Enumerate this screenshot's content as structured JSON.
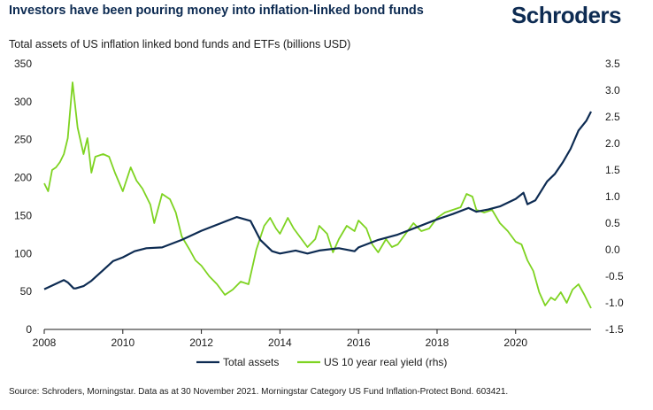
{
  "header": {
    "title": "Investors have been pouring money into inflation-linked bond funds",
    "brand": "Schroders"
  },
  "footer": {
    "source": "Source: Schroders, Morningstar. Data as at 30 November 2021. Morningstar Category US Fund Inflation-Protect Bond. 603421."
  },
  "colors": {
    "brand": "#0d2b52",
    "total_assets": "#0d2b52",
    "real_yield": "#7ed321"
  },
  "chart_data": {
    "type": "line",
    "title": "Total assets of US inflation linked bond funds and ETFs (billions USD)",
    "xlabel": "",
    "ylabel": "",
    "x_range": [
      2008,
      2021.92
    ],
    "x_ticks": [
      2008,
      2010,
      2012,
      2014,
      2016,
      2018,
      2020
    ],
    "ylim_left": [
      0,
      350
    ],
    "y_ticks_left": [
      0,
      50,
      100,
      150,
      200,
      250,
      300,
      350
    ],
    "ylim_right": [
      -1.5,
      3.5
    ],
    "y_ticks_right": [
      "3.5",
      "3.0",
      "2.5",
      "2.0",
      "1.5",
      "1.0",
      "0.5",
      "0.0",
      "-0.5",
      "-1.0",
      "-1.5"
    ],
    "legend_position": "bottom-center",
    "series": [
      {
        "name": "Total assets",
        "axis": "left",
        "x": [
          2008.0,
          2008.5,
          2008.6,
          2008.75,
          2008.8,
          2009.0,
          2009.2,
          2009.5,
          2009.75,
          2010.0,
          2010.3,
          2010.6,
          2011.0,
          2011.5,
          2012.0,
          2012.5,
          2012.9,
          2013.25,
          2013.5,
          2013.8,
          2014.0,
          2014.4,
          2014.7,
          2015.0,
          2015.5,
          2015.9,
          2016.0,
          2016.5,
          2017.0,
          2017.5,
          2018.0,
          2018.4,
          2018.8,
          2019.0,
          2019.3,
          2019.6,
          2020.0,
          2020.2,
          2020.3,
          2020.5,
          2020.8,
          2021.0,
          2021.2,
          2021.4,
          2021.6,
          2021.8,
          2021.92
        ],
        "values": [
          53,
          65,
          62,
          54,
          54,
          57,
          64,
          78,
          90,
          95,
          103,
          107,
          108,
          118,
          130,
          140,
          148,
          143,
          118,
          103,
          100,
          104,
          100,
          104,
          107,
          103,
          108,
          118,
          125,
          135,
          145,
          152,
          160,
          155,
          158,
          162,
          172,
          180,
          165,
          170,
          195,
          205,
          220,
          238,
          262,
          275,
          287
        ]
      },
      {
        "name": "US 10 year real yield (rhs)",
        "axis": "right",
        "x": [
          2008.0,
          2008.1,
          2008.2,
          2008.3,
          2008.4,
          2008.5,
          2008.6,
          2008.72,
          2008.85,
          2009.0,
          2009.1,
          2009.2,
          2009.3,
          2009.5,
          2009.65,
          2009.8,
          2010.0,
          2010.2,
          2010.35,
          2010.5,
          2010.7,
          2010.8,
          2011.0,
          2011.2,
          2011.35,
          2011.5,
          2011.7,
          2011.85,
          2012.0,
          2012.2,
          2012.4,
          2012.6,
          2012.8,
          2013.0,
          2013.2,
          2013.4,
          2013.6,
          2013.75,
          2013.9,
          2014.0,
          2014.2,
          2014.35,
          2014.5,
          2014.7,
          2014.9,
          2015.0,
          2015.2,
          2015.35,
          2015.5,
          2015.7,
          2015.9,
          2016.0,
          2016.2,
          2016.35,
          2016.5,
          2016.7,
          2016.85,
          2017.0,
          2017.2,
          2017.4,
          2017.6,
          2017.8,
          2018.0,
          2018.2,
          2018.4,
          2018.6,
          2018.75,
          2018.9,
          2019.0,
          2019.2,
          2019.4,
          2019.6,
          2019.8,
          2020.0,
          2020.15,
          2020.3,
          2020.45,
          2020.6,
          2020.75,
          2020.9,
          2021.0,
          2021.15,
          2021.3,
          2021.45,
          2021.6,
          2021.75,
          2021.85,
          2021.92
        ],
        "values": [
          1.25,
          1.1,
          1.5,
          1.55,
          1.65,
          1.8,
          2.1,
          3.15,
          2.3,
          1.8,
          2.1,
          1.45,
          1.75,
          1.8,
          1.75,
          1.45,
          1.1,
          1.55,
          1.3,
          1.15,
          0.85,
          0.5,
          1.05,
          0.95,
          0.7,
          0.25,
          0.0,
          -0.2,
          -0.3,
          -0.5,
          -0.65,
          -0.85,
          -0.75,
          -0.6,
          -0.65,
          0.0,
          0.45,
          0.6,
          0.4,
          0.3,
          0.6,
          0.4,
          0.25,
          0.05,
          0.2,
          0.45,
          0.3,
          -0.05,
          0.2,
          0.45,
          0.35,
          0.55,
          0.4,
          0.1,
          -0.05,
          0.2,
          0.05,
          0.1,
          0.3,
          0.5,
          0.35,
          0.4,
          0.6,
          0.7,
          0.75,
          0.8,
          1.05,
          1.0,
          0.75,
          0.7,
          0.75,
          0.5,
          0.35,
          0.15,
          0.1,
          -0.2,
          -0.4,
          -0.8,
          -1.05,
          -0.9,
          -0.95,
          -0.8,
          -1.0,
          -0.75,
          -0.65,
          -0.85,
          -1.0,
          -1.1
        ]
      }
    ]
  }
}
